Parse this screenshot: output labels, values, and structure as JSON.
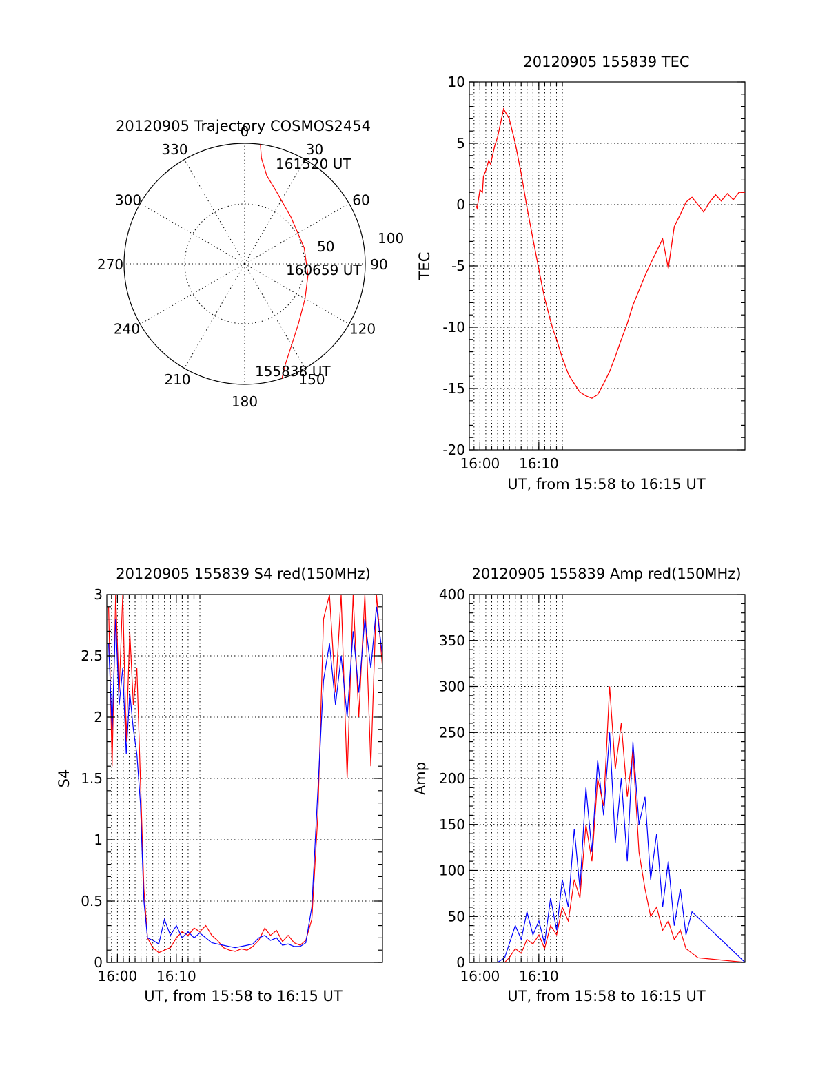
{
  "colors": {
    "red": "#ff0000",
    "blue": "#0000ff",
    "axis": "#000000"
  },
  "chart_data": [
    {
      "type": "polar",
      "title": "20120905 Trajectory COSMOS2454",
      "angle_labels": [
        "0",
        "30",
        "60",
        "90",
        "120",
        "150",
        "180",
        "210",
        "240",
        "270",
        "300",
        "330"
      ],
      "radial_labels": [
        "50",
        "100"
      ],
      "trajectory": {
        "azimuth_deg": [
          162,
          158,
          150,
          138,
          120,
          100,
          75,
          45,
          25,
          14,
          9,
          7.5
        ],
        "elevation_deg": [
          0,
          9,
          20,
          30,
          38,
          42,
          44,
          41,
          32,
          22,
          10,
          0
        ]
      },
      "annotations": [
        {
          "text": "161520 UT"
        },
        {
          "text": "160659 UT"
        },
        {
          "text": "155838 UT"
        }
      ]
    },
    {
      "type": "line",
      "title": "20120905 155839 TEC",
      "xlabel": "UT, from 15:58 to 16:15 UT",
      "ylabel": "TEC",
      "xlim": [
        15.97,
        16.75
      ],
      "ylim": [
        -20,
        10
      ],
      "xticks": [
        "16:00",
        "16:10"
      ],
      "yticks": [
        "10",
        "5",
        "0",
        "-5",
        "-10",
        "-15",
        "-20"
      ],
      "series": [
        {
          "x": [
            15.988,
            15.992,
            16.0,
            16.007,
            16.01,
            16.017,
            16.025,
            16.03,
            16.042,
            16.05,
            16.067,
            16.083,
            16.1,
            16.117,
            16.133,
            16.15,
            16.167,
            16.175,
            16.183,
            16.192,
            16.2,
            16.208,
            16.217,
            16.233,
            16.25,
            16.258,
            16.267,
            16.283,
            16.3,
            16.317,
            16.333,
            16.35,
            16.367,
            16.383,
            16.4,
            16.417,
            16.433,
            16.45,
            16.467,
            16.483,
            16.5,
            16.517,
            16.533,
            16.55,
            16.567,
            16.583,
            16.6,
            16.617,
            16.633,
            16.65,
            16.667,
            16.683,
            16.7,
            16.717,
            16.733,
            16.75
          ],
          "y": [
            0,
            -0.3,
            1.2,
            1.0,
            2.3,
            2.8,
            3.6,
            3.3,
            4.8,
            5.5,
            7.8,
            7.0,
            5.0,
            2.5,
            -0.2,
            -2.8,
            -5.3,
            -6.5,
            -7.6,
            -8.6,
            -9.5,
            -10.3,
            -11.0,
            -12.5,
            -13.8,
            -14.2,
            -14.6,
            -15.3,
            -15.6,
            -15.8,
            -15.5,
            -14.6,
            -13.6,
            -12.4,
            -11.0,
            -9.7,
            -8.2,
            -7.0,
            -5.8,
            -4.8,
            -3.8,
            -2.8,
            -5.2,
            -1.8,
            -0.8,
            0.2,
            0.6,
            0.0,
            -0.6,
            0.2,
            0.8,
            0.3,
            0.9,
            0.4,
            1.0,
            1.0
          ],
          "color": "#ff0000"
        }
      ]
    },
    {
      "type": "line",
      "title": "20120905 155839 S4 red(150MHz)",
      "xlabel": "UT, from 15:58 to 16:15 UT",
      "ylabel": "S4",
      "xlim": [
        15.97,
        16.75
      ],
      "ylim": [
        0,
        3
      ],
      "xticks": [
        "16:00",
        "16:10"
      ],
      "yticks": [
        "3",
        "2.5",
        "2",
        "1.5",
        "1",
        "0.5",
        "0"
      ],
      "series": [
        {
          "name": "",
          "color": "#ff0000",
          "x": [
            15.975,
            15.985,
            15.995,
            16.005,
            16.015,
            16.025,
            16.035,
            16.045,
            16.055,
            16.065,
            16.075,
            16.085,
            16.1,
            16.117,
            16.133,
            16.15,
            16.167,
            16.183,
            16.2,
            16.217,
            16.233,
            16.25,
            16.267,
            16.283,
            16.3,
            16.317,
            16.333,
            16.35,
            16.367,
            16.383,
            16.4,
            16.417,
            16.433,
            16.45,
            16.467,
            16.483,
            16.5,
            16.517,
            16.533,
            16.55,
            16.567,
            16.583,
            16.6,
            16.617,
            16.633,
            16.65,
            16.667,
            16.683,
            16.7,
            16.717,
            16.733,
            16.75
          ],
          "y": [
            2.9,
            1.6,
            3.0,
            2.2,
            3.0,
            1.8,
            2.7,
            2.1,
            2.4,
            1.5,
            0.6,
            0.2,
            0.12,
            0.08,
            0.1,
            0.12,
            0.2,
            0.25,
            0.22,
            0.28,
            0.25,
            0.3,
            0.22,
            0.18,
            0.12,
            0.1,
            0.09,
            0.11,
            0.1,
            0.13,
            0.18,
            0.28,
            0.22,
            0.26,
            0.17,
            0.22,
            0.16,
            0.14,
            0.18,
            0.35,
            1.2,
            2.8,
            3.0,
            2.2,
            3.0,
            1.5,
            3.0,
            2.0,
            3.0,
            1.6,
            3.0,
            2.4
          ]
        },
        {
          "name": "",
          "color": "#0000ff",
          "x": [
            15.975,
            15.985,
            15.995,
            16.005,
            16.015,
            16.025,
            16.035,
            16.045,
            16.055,
            16.065,
            16.075,
            16.085,
            16.1,
            16.117,
            16.133,
            16.15,
            16.167,
            16.183,
            16.2,
            16.217,
            16.233,
            16.25,
            16.267,
            16.283,
            16.3,
            16.317,
            16.333,
            16.35,
            16.367,
            16.383,
            16.4,
            16.417,
            16.433,
            16.45,
            16.467,
            16.483,
            16.5,
            16.517,
            16.533,
            16.55,
            16.567,
            16.583,
            16.6,
            16.617,
            16.633,
            16.65,
            16.667,
            16.683,
            16.7,
            16.717,
            16.733,
            16.75
          ],
          "y": [
            2.6,
            1.9,
            2.8,
            2.1,
            2.4,
            1.7,
            2.2,
            1.9,
            1.7,
            1.3,
            0.5,
            0.2,
            0.18,
            0.15,
            0.35,
            0.22,
            0.3,
            0.2,
            0.25,
            0.2,
            0.24,
            0.2,
            0.16,
            0.15,
            0.14,
            0.13,
            0.12,
            0.13,
            0.14,
            0.15,
            0.2,
            0.22,
            0.18,
            0.2,
            0.14,
            0.15,
            0.13,
            0.13,
            0.16,
            0.45,
            1.4,
            2.3,
            2.6,
            2.1,
            2.5,
            2.0,
            2.7,
            2.2,
            2.8,
            2.4,
            2.9,
            2.5
          ]
        }
      ]
    },
    {
      "type": "line",
      "title": "20120905 155839 Amp red(150MHz)",
      "xlabel": "UT, from 15:58 to 16:15 UT",
      "ylabel": "Amp",
      "xlim": [
        15.97,
        16.75
      ],
      "ylim": [
        0,
        400
      ],
      "xticks": [
        "16:00",
        "16:10"
      ],
      "yticks": [
        "400",
        "350",
        "300",
        "250",
        "200",
        "150",
        "100",
        "50",
        "0"
      ],
      "series": [
        {
          "name": "",
          "color": "#0000ff",
          "x": [
            15.975,
            16.05,
            16.07,
            16.083,
            16.1,
            16.117,
            16.133,
            16.15,
            16.167,
            16.183,
            16.2,
            16.217,
            16.233,
            16.25,
            16.267,
            16.283,
            16.3,
            16.317,
            16.333,
            16.35,
            16.367,
            16.383,
            16.4,
            16.417,
            16.433,
            16.45,
            16.467,
            16.483,
            16.5,
            16.517,
            16.533,
            16.55,
            16.567,
            16.583,
            16.6,
            16.75
          ],
          "y": [
            0,
            0,
            5,
            20,
            40,
            25,
            55,
            30,
            45,
            20,
            70,
            35,
            90,
            60,
            145,
            80,
            190,
            120,
            220,
            160,
            250,
            130,
            200,
            110,
            240,
            150,
            180,
            90,
            140,
            60,
            110,
            40,
            80,
            30,
            55,
            0
          ]
        },
        {
          "name": "",
          "color": "#ff0000",
          "x": [
            15.975,
            16.07,
            16.083,
            16.1,
            16.117,
            16.133,
            16.15,
            16.167,
            16.183,
            16.2,
            16.217,
            16.233,
            16.25,
            16.267,
            16.283,
            16.3,
            16.317,
            16.333,
            16.35,
            16.367,
            16.383,
            16.4,
            16.417,
            16.433,
            16.45,
            16.467,
            16.483,
            16.5,
            16.517,
            16.533,
            16.55,
            16.567,
            16.583,
            16.6,
            16.617,
            16.75
          ],
          "y": [
            0,
            0,
            5,
            15,
            10,
            25,
            20,
            30,
            15,
            40,
            30,
            60,
            45,
            90,
            70,
            150,
            110,
            200,
            170,
            300,
            210,
            260,
            180,
            230,
            120,
            80,
            50,
            60,
            35,
            45,
            25,
            35,
            15,
            10,
            5,
            0
          ]
        }
      ]
    }
  ]
}
